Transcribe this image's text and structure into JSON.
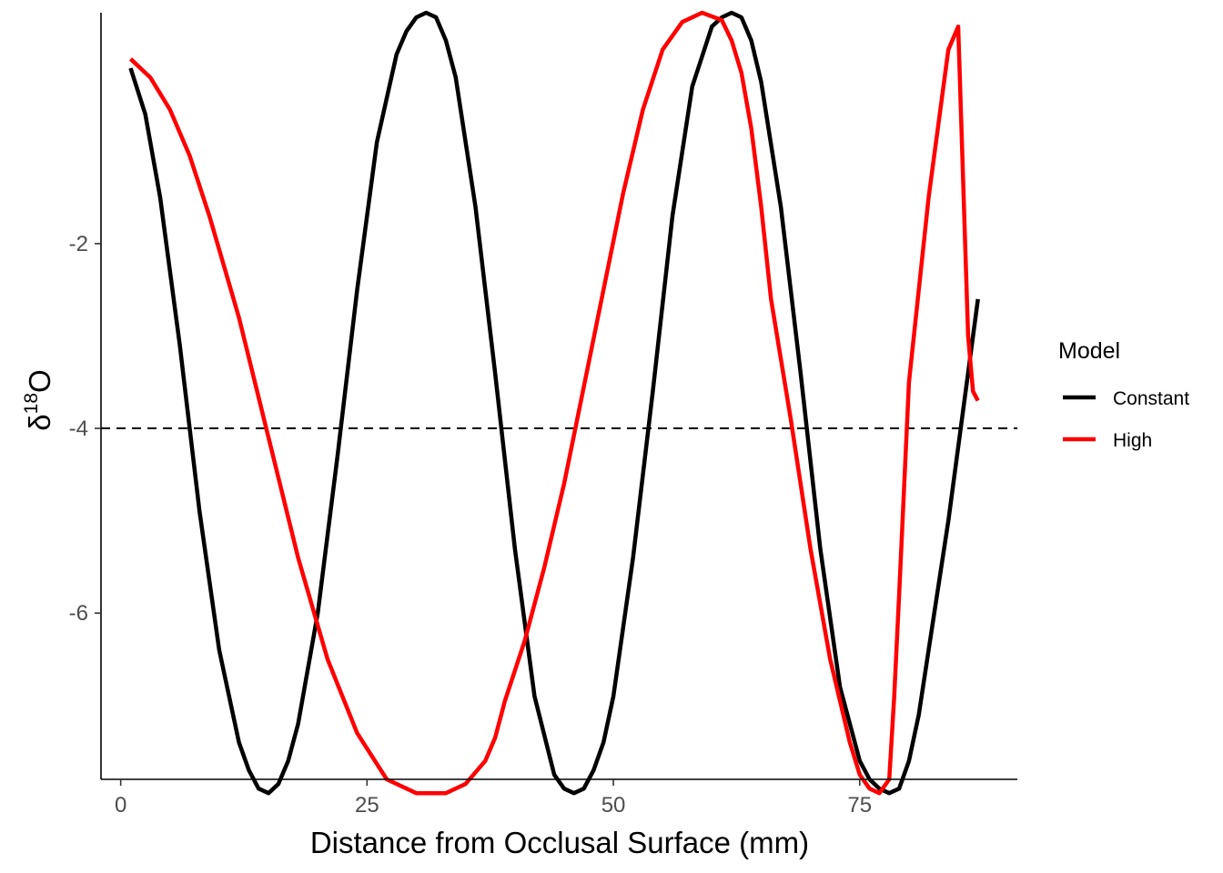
{
  "chart_data": {
    "type": "line",
    "title": "",
    "xlabel": "Distance from Occlusal Surface (mm)",
    "ylabel": {
      "prefix": "δ",
      "superscript": "18",
      "suffix": "O"
    },
    "xlim": [
      -2,
      91
    ],
    "ylim": [
      -7.8,
      0.5
    ],
    "xticks": [
      0,
      25,
      50,
      75
    ],
    "yticks": [
      -2,
      -4,
      -6
    ],
    "xtick_labels": [
      "0",
      "25",
      "50",
      "75"
    ],
    "ytick_labels": [
      "-2",
      "-4",
      "-6"
    ],
    "grid": false,
    "reference_line": {
      "y": -4,
      "style": "dashed",
      "color": "#000000"
    },
    "legend": {
      "title": "Model",
      "position": "right",
      "entries": [
        {
          "label": "Constant",
          "color": "#000000"
        },
        {
          "label": "High",
          "color": "#ff0000"
        }
      ]
    },
    "series": [
      {
        "name": "Constant",
        "color": "#000000",
        "x": [
          1,
          2.5,
          4,
          6,
          8,
          10,
          12,
          13,
          14,
          15,
          16,
          17,
          18,
          20,
          22,
          24,
          26,
          28,
          29,
          30,
          31,
          32,
          33,
          34,
          36,
          38,
          40,
          42,
          44,
          45,
          46,
          47,
          48,
          49,
          50,
          52,
          54,
          56,
          58,
          60,
          61,
          62,
          63,
          64,
          65,
          67,
          69,
          71,
          73,
          75,
          76,
          77,
          78,
          79,
          80,
          81,
          82,
          84,
          86,
          87
        ],
        "y": [
          -0.1,
          -0.6,
          -1.5,
          -3.1,
          -4.9,
          -6.4,
          -7.4,
          -7.7,
          -7.9,
          -7.95,
          -7.85,
          -7.6,
          -7.2,
          -6.0,
          -4.3,
          -2.5,
          -0.9,
          0.05,
          0.3,
          0.45,
          0.5,
          0.45,
          0.2,
          -0.2,
          -1.6,
          -3.4,
          -5.3,
          -6.9,
          -7.75,
          -7.9,
          -7.95,
          -7.9,
          -7.7,
          -7.4,
          -6.9,
          -5.4,
          -3.6,
          -1.7,
          -0.3,
          0.35,
          0.45,
          0.5,
          0.45,
          0.2,
          -0.25,
          -1.6,
          -3.4,
          -5.3,
          -6.8,
          -7.6,
          -7.8,
          -7.9,
          -7.95,
          -7.9,
          -7.6,
          -7.1,
          -6.4,
          -5.0,
          -3.4,
          -2.6
        ]
      },
      {
        "name": "High",
        "color": "#ff0000",
        "x": [
          1,
          3,
          5,
          7,
          9,
          12,
          15,
          18,
          21,
          24,
          27,
          30,
          33,
          35,
          37,
          38,
          39,
          41,
          43,
          45,
          47,
          49,
          51,
          53,
          55,
          57,
          59,
          61,
          62,
          63,
          64,
          65,
          66,
          68,
          70,
          72,
          74,
          75,
          76,
          77,
          78,
          78.5,
          79,
          80,
          82,
          84,
          85,
          86,
          86.5,
          87
        ],
        "y": [
          0,
          -0.2,
          -0.55,
          -1.05,
          -1.7,
          -2.8,
          -4.1,
          -5.4,
          -6.5,
          -7.3,
          -7.8,
          -7.95,
          -7.95,
          -7.85,
          -7.6,
          -7.35,
          -6.95,
          -6.3,
          -5.5,
          -4.6,
          -3.55,
          -2.5,
          -1.45,
          -0.55,
          0.1,
          0.4,
          0.5,
          0.42,
          0.2,
          -0.15,
          -0.75,
          -1.6,
          -2.6,
          -3.9,
          -5.3,
          -6.5,
          -7.4,
          -7.75,
          -7.9,
          -7.95,
          -7.8,
          -6.9,
          -5.8,
          -3.5,
          -1.5,
          0.1,
          0.35,
          -3.0,
          -3.6,
          -3.7
        ]
      }
    ]
  }
}
